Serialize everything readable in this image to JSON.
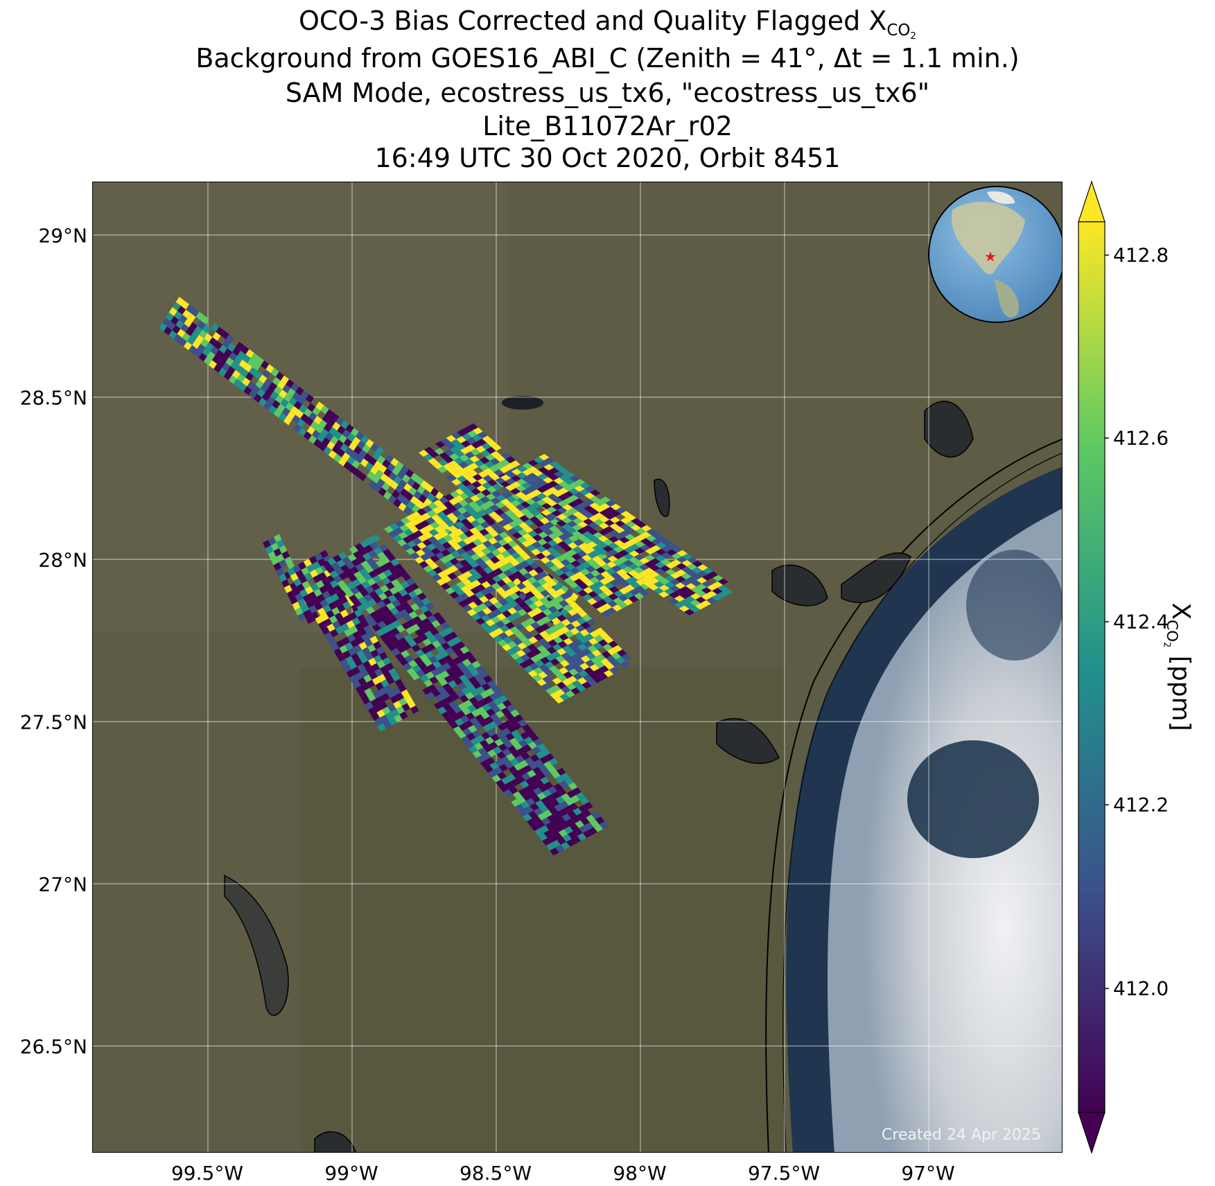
{
  "title": {
    "line1_prefix": "OCO-3 Bias Corrected and Quality Flagged X",
    "line1_sub": "CO",
    "line1_subsub": "2",
    "line2": "Background from GOES16_ABI_C (Zenith = 41°, Δt =  1.1 min.)",
    "line3": "SAM Mode, ecostress_us_tx6, \"ecostress_us_tx6\"",
    "line4": "Lite_B11072Ar_r02",
    "line5": "16:49 UTC 30 Oct 2020, Orbit 8451"
  },
  "map": {
    "lat_ticks": [
      "29°N",
      "28.5°N",
      "28°N",
      "27.5°N",
      "27°N",
      "26.5°N"
    ],
    "lon_ticks": [
      "99.5°W",
      "99°W",
      "98.5°W",
      "98°W",
      "97.5°W",
      "97°W"
    ],
    "credit": "Created 24 Apr 2025",
    "land_color": "#5e5c44",
    "water_color": "#1f3550",
    "cloud_color": "#dcdfe2"
  },
  "colorbar": {
    "ticks": [
      "412.8",
      "412.6",
      "412.4",
      "412.2",
      "412.0"
    ],
    "label_prefix": "X",
    "label_sub": "CO",
    "label_subsub": "2",
    "label_suffix": " [ppm]",
    "colormap": [
      "#440154",
      "#3b528b",
      "#21918c",
      "#5ec962",
      "#fde725"
    ]
  }
}
